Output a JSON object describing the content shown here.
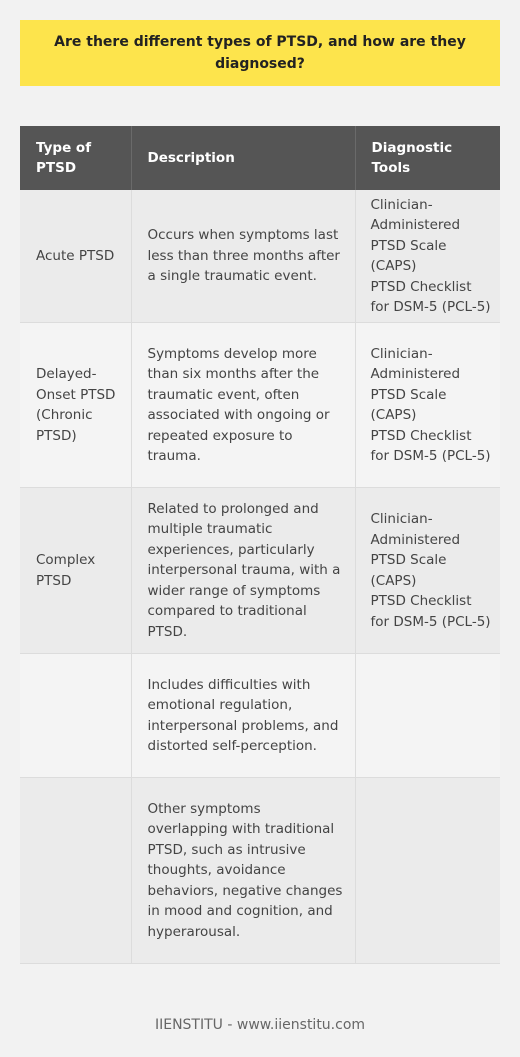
{
  "title": "Are there different types of PTSD, and how are they diagnosed?",
  "table": {
    "headers": [
      "Type of PTSD",
      "Description",
      "Diagnostic Tools"
    ],
    "rows": [
      {
        "type": "Acute PTSD",
        "description": "Occurs when symptoms last less than three months after a single traumatic event.",
        "tools": [
          "Clinician-Administered PTSD Scale (CAPS)",
          "PTSD Checklist for DSM-5 (PCL-5)"
        ]
      },
      {
        "type": "Delayed-Onset PTSD (Chronic PTSD)",
        "description": "Symptoms develop more than six months after the traumatic event, often associated with ongoing or repeated exposure to trauma.",
        "tools": [
          "Clinician-Administered PTSD Scale (CAPS)",
          "PTSD Checklist for DSM-5 (PCL-5)"
        ]
      },
      {
        "type": "Complex PTSD",
        "description": "Related to prolonged and multiple traumatic experiences, particularly interpersonal trauma, with a wider range of symptoms compared to traditional PTSD.",
        "tools": [
          "Clinician-Administered PTSD Scale (CAPS)",
          "PTSD Checklist for DSM-5 (PCL-5)"
        ]
      },
      {
        "type": "",
        "description": "Includes difficulties with emotional regulation, interpersonal problems, and distorted self-perception.",
        "tools": []
      },
      {
        "type": "",
        "description": "Other symptoms overlapping with traditional PTSD, such as intrusive thoughts, avoidance behaviors, negative changes in mood and cognition, and hyperarousal.",
        "tools": []
      }
    ]
  },
  "footer": "IIENSTITU - www.iienstitu.com"
}
